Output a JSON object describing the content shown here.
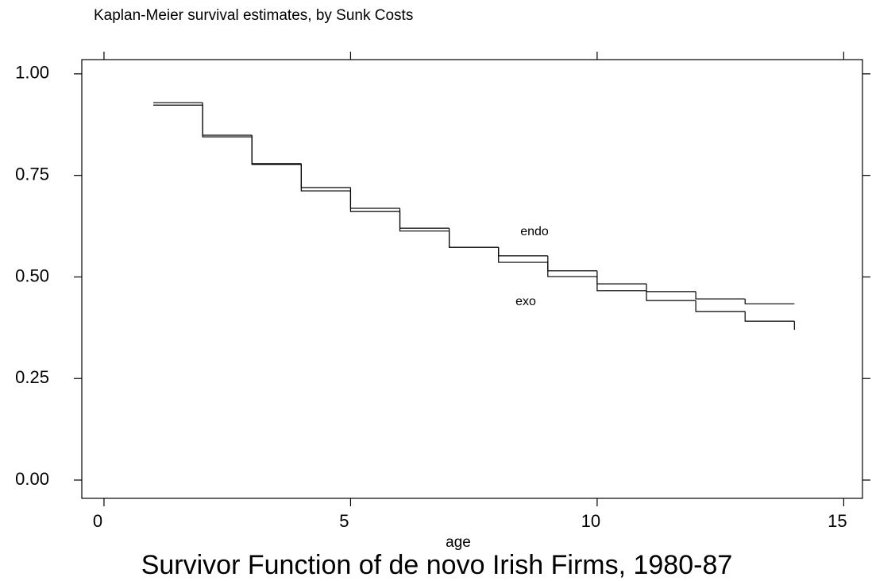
{
  "chart_data": {
    "type": "step",
    "title": "Kaplan-Meier survival estimates, by Sunk Costs",
    "caption": "Survivor Function of de novo Irish Firms, 1980-87",
    "x_label": "age",
    "x": [
      1,
      2,
      3,
      4,
      5,
      6,
      7,
      8,
      9,
      10,
      11,
      12,
      13,
      14
    ],
    "series": [
      {
        "name": "endo",
        "color": "#000000",
        "values": [
          0.929,
          0.849,
          0.779,
          0.72,
          0.669,
          0.62,
          0.573,
          0.552,
          0.515,
          0.483,
          0.464,
          0.446,
          0.434,
          0.434
        ]
      },
      {
        "name": "exo",
        "color": "#000000",
        "values": [
          0.923,
          0.845,
          0.777,
          0.712,
          0.661,
          0.613,
          0.573,
          0.536,
          0.501,
          0.466,
          0.442,
          0.415,
          0.391,
          0.37
        ]
      }
    ],
    "xlim": [
      -0.45,
      15.38
    ],
    "ylim": [
      -0.045,
      1.035
    ],
    "xticks": [
      0,
      5,
      10,
      15
    ],
    "yticks": [
      {
        "value": 0,
        "label": "0.00"
      },
      {
        "value": 0.25,
        "label": "0.25"
      },
      {
        "value": 0.5,
        "label": "0.50"
      },
      {
        "value": 0.75,
        "label": "0.75"
      },
      {
        "value": 1,
        "label": "1.00"
      }
    ]
  }
}
